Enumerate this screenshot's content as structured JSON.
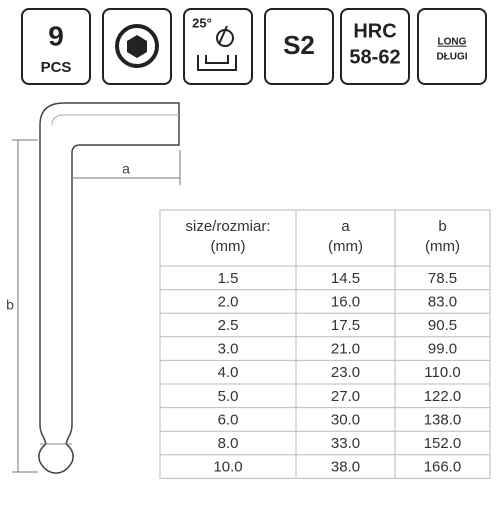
{
  "badges": {
    "pieces": {
      "number": "9",
      "unit": "PCS"
    },
    "angle": "25°",
    "steel": "S2",
    "hardness": {
      "label": "HRC",
      "range": "58-62"
    },
    "length": {
      "en": "LONG",
      "pl": "DŁUGI"
    }
  },
  "drawing": {
    "dim_a": "a",
    "dim_b": "b"
  },
  "table": {
    "headers": [
      [
        "size/rozmiar:",
        "(mm)"
      ],
      [
        "a",
        "(mm)"
      ],
      [
        "b",
        "(mm)"
      ]
    ],
    "rows": [
      [
        "1.5",
        "14.5",
        "78.5"
      ],
      [
        "2.0",
        "16.0",
        "83.0"
      ],
      [
        "2.5",
        "17.5",
        "90.5"
      ],
      [
        "3.0",
        "21.0",
        "99.0"
      ],
      [
        "4.0",
        "23.0",
        "110.0"
      ],
      [
        "5.0",
        "27.0",
        "122.0"
      ],
      [
        "6.0",
        "30.0",
        "138.0"
      ],
      [
        "8.0",
        "33.0",
        "152.0"
      ],
      [
        "10.0",
        "38.0",
        "166.0"
      ]
    ]
  }
}
